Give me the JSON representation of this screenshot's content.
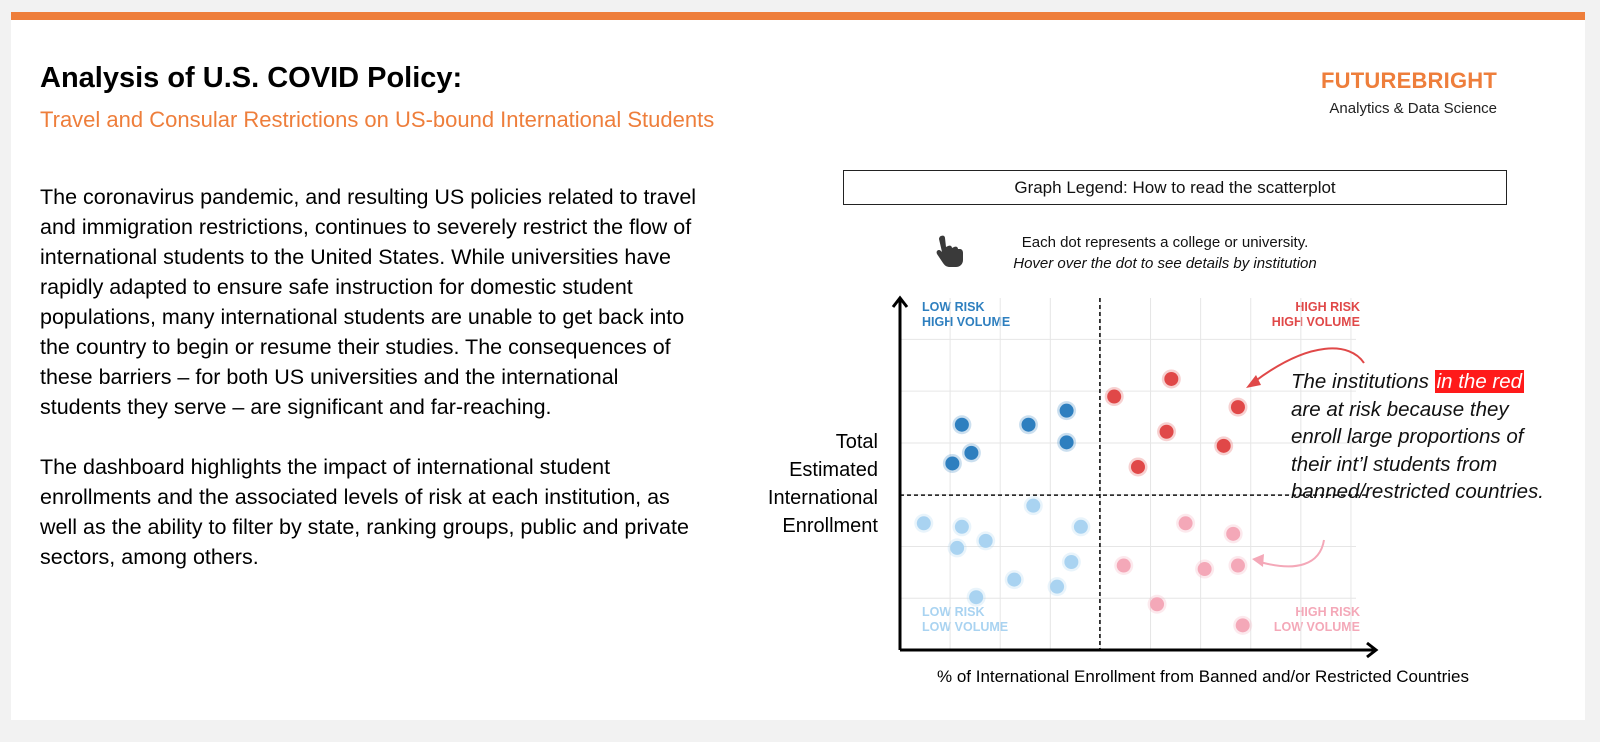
{
  "header": {
    "title": "Analysis of U.S. COVID Policy:",
    "subtitle": "Travel and Consular Restrictions on US-bound International Students"
  },
  "brand": {
    "name": "FUTUREBRIGHT",
    "tagline": "Analytics & Data Science"
  },
  "body": {
    "paragraph1": "The coronavirus pandemic, and resulting US policies related to travel and immigration restrictions, continues to severely restrict the flow of international students to the United States. While universities have rapidly adapted to ensure safe instruction for domestic student populations, many international students are unable to get back into the country to begin or resume their studies. The consequences of these barriers – for both US universities and the international students they serve – are significant and far-reaching.",
    "paragraph2": "The dashboard highlights the impact of international student enrollments and the associated levels of risk at each institution, as well as the ability to filter by state, ranking groups, public and private sectors, among others."
  },
  "legend": {
    "box_title": "Graph Legend: How to read the scatterplot",
    "hint_line1": "Each dot represents a college or university.",
    "hint_line2": "Hover over the dot to see details by institution",
    "hint_icon": "pointer-hand-icon"
  },
  "quadrants": {
    "low_high": [
      "LOW RISK",
      "HIGH VOLUME"
    ],
    "high_high": [
      "HIGH RISK",
      "HIGH VOLUME"
    ],
    "low_low": [
      "LOW RISK",
      "LOW VOLUME"
    ],
    "high_low": [
      "HIGH RISK",
      "LOW VOLUME"
    ]
  },
  "axes": {
    "ylabel_lines": [
      "Total",
      "Estimated",
      "International",
      "Enrollment"
    ],
    "xlabel": "% of International Enrollment from Banned and/or Restricted Countries"
  },
  "note": {
    "before": "The institutions ",
    "highlight": "in the red",
    "after": " are at risk because they enroll large proportions of their int’l students from banned/restricted countries."
  },
  "colors": {
    "accent": "#ee7e3b",
    "dark_blue": "#2e7fbf",
    "red": "#e04848",
    "light_blue": "#a9d3f1",
    "pink": "#f4a8b8"
  },
  "chart_data": {
    "type": "scatter",
    "grid": true,
    "xlim": [
      0,
      100
    ],
    "ylim": [
      0,
      100
    ],
    "dividers": {
      "x": 42,
      "y": 44
    },
    "series": [
      {
        "group": "low_risk_high_volume",
        "color": "#2e7fbf",
        "x": [
          13,
          15,
          27,
          35,
          35,
          11
        ],
        "y": [
          64,
          56,
          64,
          68,
          59,
          53
        ]
      },
      {
        "group": "high_risk_high_volume",
        "color": "#e04848",
        "x": [
          45,
          57,
          56,
          50,
          71,
          68
        ],
        "y": [
          72,
          77,
          62,
          52,
          69,
          58
        ]
      },
      {
        "group": "low_risk_low_volume",
        "color": "#a9d3f1",
        "x": [
          5,
          13,
          18,
          28,
          38,
          12,
          24,
          36,
          33,
          16
        ],
        "y": [
          36,
          35,
          31,
          41,
          35,
          29,
          20,
          25,
          18,
          15
        ]
      },
      {
        "group": "high_risk_low_volume",
        "color": "#f4a8b8",
        "x": [
          60,
          70,
          47,
          64,
          71,
          54,
          72
        ],
        "y": [
          36,
          33,
          24,
          23,
          24,
          13,
          7
        ]
      }
    ]
  }
}
